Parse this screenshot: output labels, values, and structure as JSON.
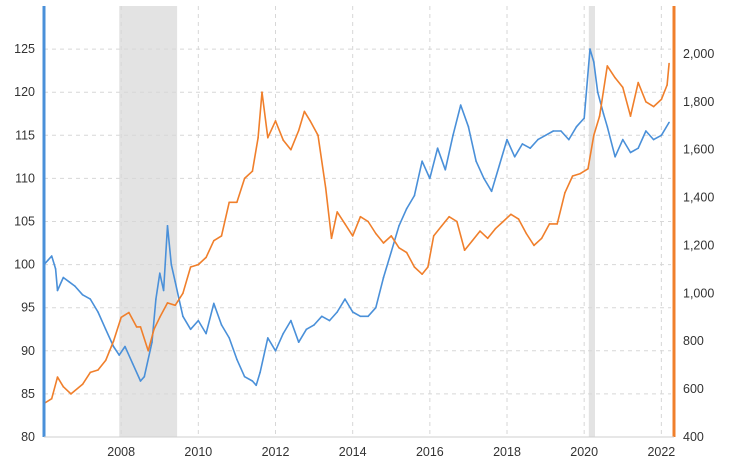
{
  "chart_data": {
    "type": "line",
    "title": "",
    "xlabel": "",
    "x_ticks": [
      "2008",
      "2010",
      "2012",
      "2014",
      "2016",
      "2018",
      "2020",
      "2022"
    ],
    "xlim": [
      2006.0,
      2022.25
    ],
    "grid": true,
    "left_axis": {
      "ylim": [
        80,
        130
      ],
      "ticks": [
        80,
        85,
        90,
        95,
        100,
        105,
        110,
        115,
        120,
        125
      ],
      "color": "#4a90d9"
    },
    "right_axis": {
      "ylim": [
        400,
        2200
      ],
      "ticks": [
        400,
        600,
        800,
        1000,
        1200,
        1400,
        1600,
        1800,
        2000
      ],
      "tick_labels": [
        "400",
        "600",
        "800",
        "1,000",
        "1,200",
        "1,400",
        "1,600",
        "1,800",
        "2,000"
      ],
      "color": "#f07f2b"
    },
    "shaded_periods": [
      [
        2007.95,
        2009.45
      ],
      [
        2020.12,
        2020.28
      ]
    ],
    "series": [
      {
        "axis": "left",
        "color": "#4a90d9",
        "x": [
          2006.0,
          2006.1,
          2006.2,
          2006.3,
          2006.35,
          2006.5,
          2006.65,
          2006.8,
          2007.0,
          2007.2,
          2007.4,
          2007.6,
          2007.8,
          2007.95,
          2008.1,
          2008.3,
          2008.5,
          2008.6,
          2008.8,
          2008.9,
          2009.0,
          2009.1,
          2009.2,
          2009.3,
          2009.4,
          2009.5,
          2009.6,
          2009.8,
          2010.0,
          2010.2,
          2010.4,
          2010.6,
          2010.8,
          2011.0,
          2011.2,
          2011.4,
          2011.5,
          2011.6,
          2011.8,
          2012.0,
          2012.2,
          2012.4,
          2012.6,
          2012.8,
          2013.0,
          2013.2,
          2013.4,
          2013.6,
          2013.8,
          2014.0,
          2014.2,
          2014.4,
          2014.6,
          2014.8,
          2015.0,
          2015.2,
          2015.4,
          2015.6,
          2015.8,
          2016.0,
          2016.2,
          2016.4,
          2016.6,
          2016.8,
          2017.0,
          2017.2,
          2017.4,
          2017.6,
          2017.8,
          2018.0,
          2018.2,
          2018.4,
          2018.6,
          2018.8,
          2019.0,
          2019.2,
          2019.4,
          2019.6,
          2019.8,
          2020.0,
          2020.15,
          2020.25,
          2020.35,
          2020.5,
          2020.6,
          2020.8,
          2021.0,
          2021.2,
          2021.4,
          2021.6,
          2021.8,
          2022.0,
          2022.2
        ],
        "values": [
          100.0,
          100.5,
          101.0,
          99.5,
          97.0,
          98.5,
          98.0,
          97.5,
          96.5,
          96.0,
          94.5,
          92.5,
          90.5,
          89.5,
          90.5,
          88.5,
          86.5,
          87.0,
          91.0,
          96.0,
          99.0,
          97.0,
          104.5,
          100.0,
          98.0,
          96.0,
          94.0,
          92.5,
          93.5,
          92.0,
          95.5,
          93.0,
          91.5,
          89.0,
          87.0,
          86.5,
          86.0,
          87.5,
          91.5,
          90.0,
          92.0,
          93.5,
          91.0,
          92.5,
          93.0,
          94.0,
          93.5,
          94.5,
          96.0,
          94.5,
          94.0,
          94.0,
          95.0,
          98.5,
          101.5,
          104.5,
          106.5,
          108.0,
          112.0,
          110.0,
          113.5,
          111.0,
          115.0,
          118.5,
          116.0,
          112.0,
          110.0,
          108.5,
          111.5,
          114.5,
          112.5,
          114.0,
          113.5,
          114.5,
          115.0,
          115.5,
          115.5,
          114.5,
          116.0,
          117.0,
          125.0,
          123.5,
          120.0,
          117.5,
          116.0,
          112.5,
          114.5,
          113.0,
          113.5,
          115.5,
          114.5,
          115.0,
          116.5
        ]
      },
      {
        "axis": "right",
        "color": "#f07f2b",
        "x": [
          2006.0,
          2006.2,
          2006.35,
          2006.5,
          2006.7,
          2007.0,
          2007.2,
          2007.4,
          2007.6,
          2007.8,
          2008.0,
          2008.2,
          2008.4,
          2008.5,
          2008.7,
          2008.85,
          2009.0,
          2009.2,
          2009.4,
          2009.6,
          2009.8,
          2010.0,
          2010.2,
          2010.4,
          2010.6,
          2010.8,
          2011.0,
          2011.2,
          2011.4,
          2011.55,
          2011.65,
          2011.8,
          2012.0,
          2012.2,
          2012.4,
          2012.6,
          2012.75,
          2012.9,
          2013.1,
          2013.3,
          2013.45,
          2013.6,
          2013.8,
          2014.0,
          2014.2,
          2014.4,
          2014.6,
          2014.8,
          2015.0,
          2015.2,
          2015.4,
          2015.6,
          2015.8,
          2015.95,
          2016.1,
          2016.3,
          2016.5,
          2016.7,
          2016.9,
          2017.1,
          2017.3,
          2017.5,
          2017.7,
          2017.9,
          2018.1,
          2018.3,
          2018.5,
          2018.7,
          2018.9,
          2019.1,
          2019.3,
          2019.5,
          2019.7,
          2019.9,
          2020.1,
          2020.25,
          2020.4,
          2020.6,
          2020.8,
          2021.0,
          2021.2,
          2021.4,
          2021.6,
          2021.8,
          2022.0,
          2022.15,
          2022.2
        ],
        "values": [
          540,
          560,
          650,
          610,
          580,
          620,
          670,
          680,
          720,
          800,
          900,
          920,
          860,
          860,
          760,
          850,
          900,
          960,
          950,
          1000,
          1110,
          1120,
          1150,
          1220,
          1240,
          1380,
          1380,
          1480,
          1510,
          1650,
          1840,
          1650,
          1720,
          1640,
          1600,
          1680,
          1760,
          1720,
          1660,
          1440,
          1230,
          1340,
          1290,
          1240,
          1320,
          1300,
          1250,
          1210,
          1240,
          1190,
          1170,
          1110,
          1080,
          1110,
          1240,
          1280,
          1320,
          1300,
          1180,
          1220,
          1260,
          1230,
          1270,
          1300,
          1330,
          1310,
          1250,
          1200,
          1230,
          1290,
          1290,
          1420,
          1490,
          1500,
          1520,
          1660,
          1740,
          1950,
          1900,
          1860,
          1740,
          1880,
          1800,
          1780,
          1810,
          1870,
          1960
        ]
      }
    ]
  }
}
